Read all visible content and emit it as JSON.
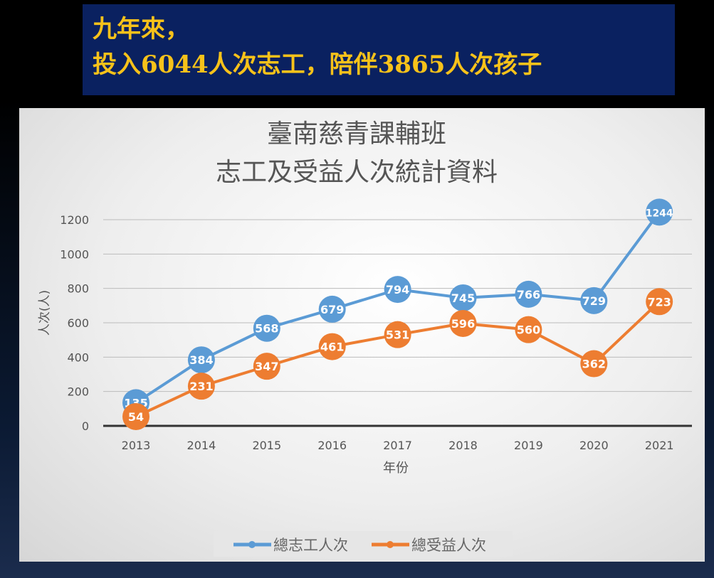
{
  "banner": {
    "line1": "九年來，",
    "line2": "投入6044人次志工，陪伴3865人次孩子"
  },
  "chart_data": {
    "type": "line",
    "title": [
      "臺南慈青課輔班",
      "志工及受益人次統計資料"
    ],
    "xlabel": "年份",
    "ylabel": "人次(人)",
    "categories": [
      "2013",
      "2014",
      "2015",
      "2016",
      "2017",
      "2018",
      "2019",
      "2020",
      "2021"
    ],
    "ylim": [
      0,
      1200
    ],
    "yticks": [
      0,
      200,
      400,
      600,
      800,
      1000,
      1200
    ],
    "grid": true,
    "legend": "bottom",
    "series": [
      {
        "name": "總志工人次",
        "color": "#5b9bd5",
        "values": [
          135,
          384,
          568,
          679,
          794,
          745,
          766,
          729,
          1244
        ]
      },
      {
        "name": "總受益人次",
        "color": "#ed7d31",
        "values": [
          54,
          231,
          347,
          461,
          531,
          596,
          560,
          362,
          723
        ]
      }
    ]
  }
}
